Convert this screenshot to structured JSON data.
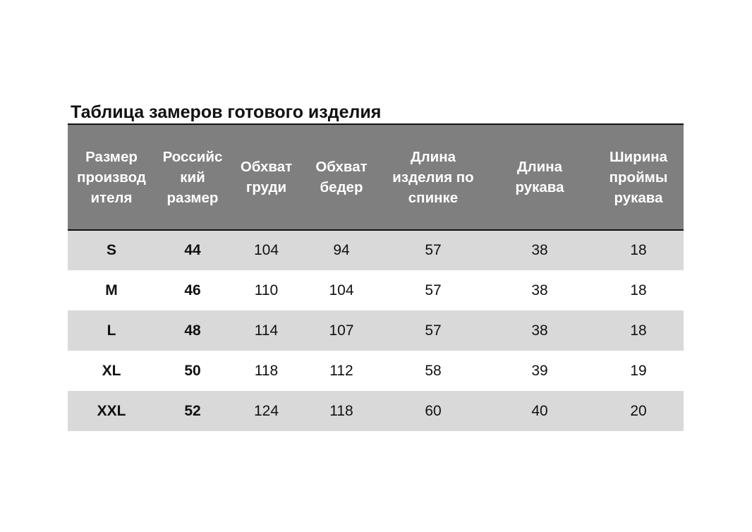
{
  "title": "Таблица замеров готового изделия",
  "table": {
    "headers": [
      "Размер\nпроизвод\nителя",
      "Российс\nкий\nразмер",
      "Обхват\nгруди",
      "Обхват\nбедер",
      "Длина\nизделия по\nспинке",
      "Длина\nрукава",
      "Ширина\nпроймы\nрукава"
    ],
    "rows": [
      [
        "S",
        "44",
        "104",
        "94",
        "57",
        "38",
        "18"
      ],
      [
        "M",
        "46",
        "110",
        "104",
        "57",
        "38",
        "18"
      ],
      [
        "L",
        "48",
        "114",
        "107",
        "57",
        "38",
        "18"
      ],
      [
        "XL",
        "50",
        "118",
        "112",
        "58",
        "39",
        "19"
      ],
      [
        "XXL",
        "52",
        "124",
        "118",
        "60",
        "40",
        "20"
      ]
    ]
  },
  "colors": {
    "header_background": "#7f7f7f",
    "header_text": "#ffffff",
    "row_shaded": "#d9d9d9",
    "row_plain": "#ffffff",
    "rule": "#111111"
  }
}
